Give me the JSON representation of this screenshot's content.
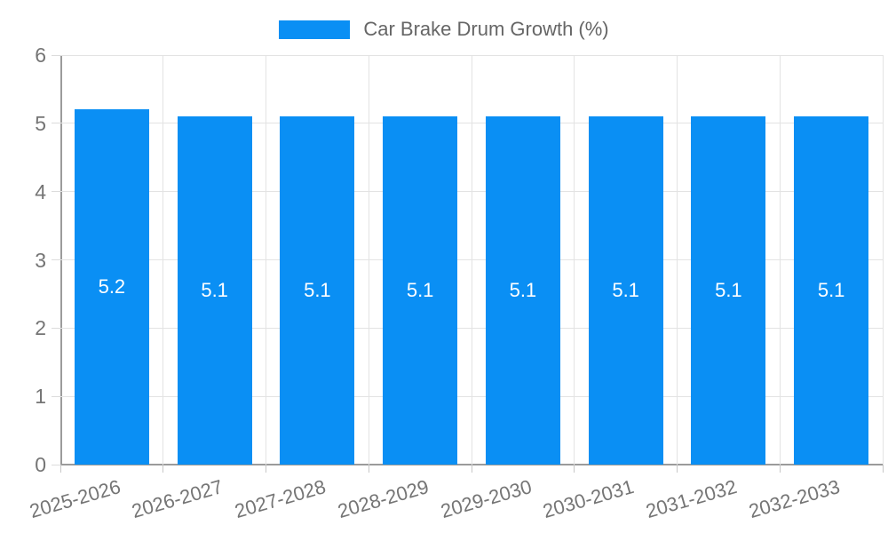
{
  "legend": {
    "label": "Car Brake Drum Growth (%)"
  },
  "colors": {
    "bar": "#0a8ff4",
    "grid": "#e3e3e3",
    "axis": "#9b9b9b",
    "tick_text": "#757575",
    "legend_text": "#666666",
    "bar_label_text": "#ffffff",
    "background": "#ffffff"
  },
  "chart_data": {
    "type": "bar",
    "title": "Car Brake Drum Growth (%)",
    "categories": [
      "2025-2026",
      "2026-2027",
      "2027-2028",
      "2028-2029",
      "2029-2030",
      "2030-2031",
      "2031-2032",
      "2032-2033"
    ],
    "values": [
      5.2,
      5.1,
      5.1,
      5.1,
      5.1,
      5.1,
      5.1,
      5.1
    ],
    "value_labels": [
      "5.2",
      "5.1",
      "5.1",
      "5.1",
      "5.1",
      "5.1",
      "5.1",
      "5.1"
    ],
    "ytick_labels": [
      "0",
      "1",
      "2",
      "3",
      "4",
      "5",
      "6"
    ],
    "yticks": [
      0,
      1,
      2,
      3,
      4,
      5,
      6
    ],
    "ylim": [
      0,
      6
    ],
    "xlabel": "",
    "ylabel": "",
    "grid": true,
    "legend_position": "top",
    "x_label_rotation_deg": -16
  }
}
